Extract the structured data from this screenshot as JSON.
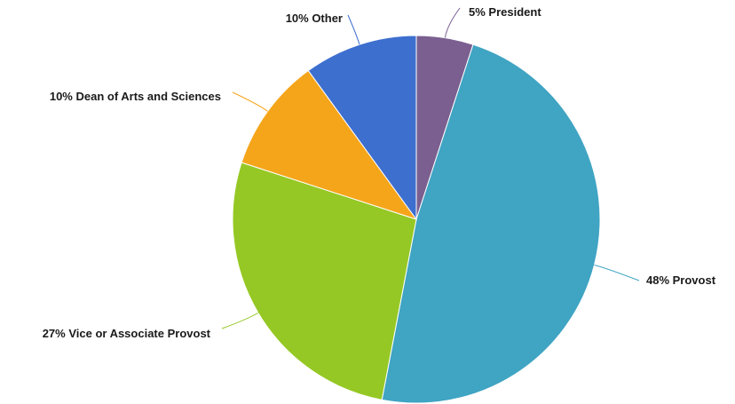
{
  "chart_data": {
    "type": "pie",
    "title": "",
    "slices": [
      {
        "label": "President",
        "value": 5,
        "display": "5% President",
        "color": "#7a5f90"
      },
      {
        "label": "Provost",
        "value": 48,
        "display": "48% Provost",
        "color": "#40a4c3"
      },
      {
        "label": "Vice or Associate Provost",
        "value": 27,
        "display": "27% Vice or Associate Provost",
        "color": "#95c824"
      },
      {
        "label": "Dean of Arts and Sciences",
        "value": 10,
        "display": "10% Dean of Arts and Sciences",
        "color": "#f5a51a"
      },
      {
        "label": "Other",
        "value": 10,
        "display": "10% Other",
        "color": "#3d6fcf"
      }
    ],
    "start": "top",
    "direction": "clockwise",
    "legend": "none",
    "label_style": "outside-leader-lines"
  }
}
